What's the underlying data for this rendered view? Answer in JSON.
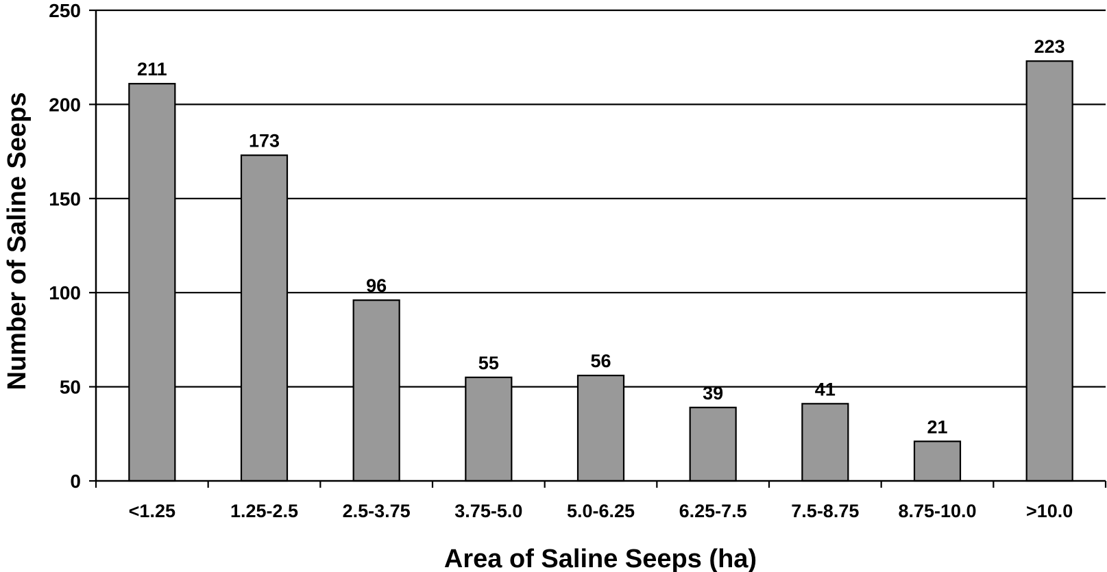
{
  "chart_data": {
    "type": "bar",
    "title": "",
    "xlabel": "Area of Saline Seeps (ha)",
    "ylabel": "Number of Saline Seeps",
    "categories": [
      "<1.25",
      "1.25-2.5",
      "2.5-3.75",
      "3.75-5.0",
      "5.0-6.25",
      "6.25-7.5",
      "7.5-8.75",
      "8.75-10.0",
      ">10.0"
    ],
    "values": [
      211,
      173,
      96,
      55,
      56,
      39,
      41,
      21,
      223
    ],
    "data_labels": [
      "211",
      "173",
      "96",
      "55",
      "56",
      "39",
      "41",
      "21",
      "223"
    ],
    "ylim": [
      0,
      250
    ],
    "yticks": [
      0,
      50,
      100,
      150,
      200,
      250
    ],
    "ytick_labels": [
      "0",
      "50",
      "100",
      "150",
      "200",
      "250"
    ],
    "grid": "horizontal",
    "legend": "none",
    "colors": {
      "bar_fill": "#999999",
      "bar_stroke": "#000000",
      "grid": "#000000",
      "axis": "#000000",
      "background": "#ffffff"
    }
  }
}
